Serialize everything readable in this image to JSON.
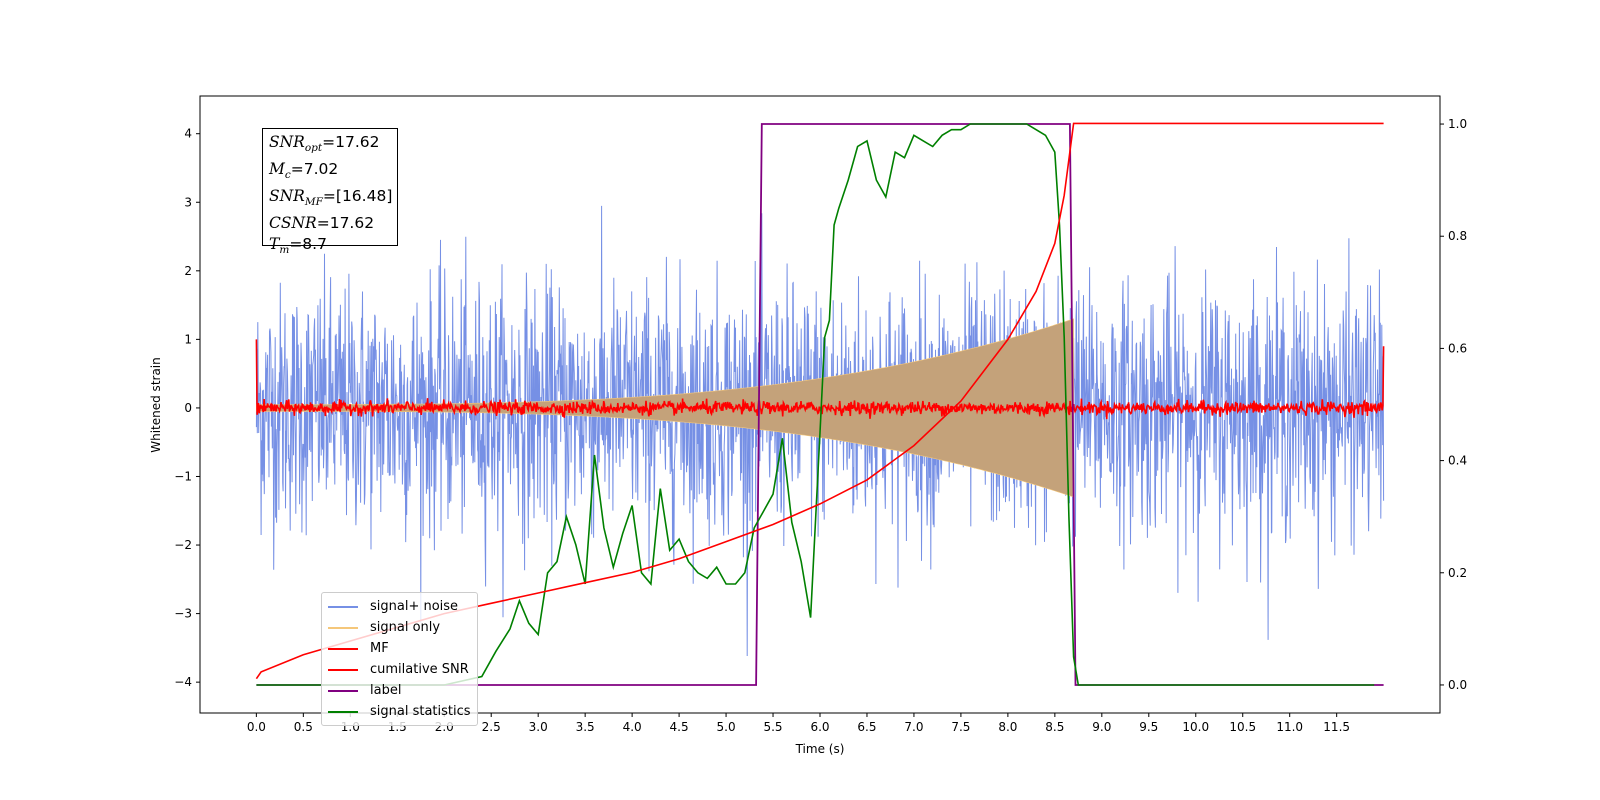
{
  "chart_data": {
    "type": "line",
    "xlabel": "Time (s)",
    "ylabel": "Whitened strain",
    "xlim": [
      -0.6,
      12.6
    ],
    "ylim": [
      -4.45,
      4.55
    ],
    "y2lim": [
      -0.05,
      1.05
    ],
    "x_ticks": [
      "0.0",
      "0.5",
      "1.0",
      "1.5",
      "2.0",
      "2.5",
      "3.0",
      "3.5",
      "4.0",
      "4.5",
      "5.0",
      "5.5",
      "6.0",
      "6.5",
      "7.0",
      "7.5",
      "8.0",
      "8.5",
      "9.0",
      "9.5",
      "10.0",
      "10.5",
      "11.0",
      "11.5"
    ],
    "y_ticks": [
      "−4",
      "−3",
      "−2",
      "−1",
      "0",
      "1",
      "2",
      "3",
      "4"
    ],
    "y2_ticks": [
      "0.0",
      "0.2",
      "0.4",
      "0.6",
      "0.8",
      "1.0"
    ],
    "annotations": {
      "snr_opt_value": "=17.62",
      "mc_value": "=7.02",
      "snr_mf_value": "=[16.48]",
      "csnr_value": "=17.62",
      "tm_value": "=8.7"
    },
    "legend": [
      "signal+ noise",
      "signal only",
      "MF",
      "cumilative SNR",
      "label",
      "signal statistics"
    ],
    "legend_placement": "lower left",
    "series": [
      {
        "name": "signal+ noise",
        "axis": "left",
        "color": "#7690e5",
        "duration": 12.0,
        "std": 0.9,
        "max_abs": 4.15
      },
      {
        "name": "signal only",
        "axis": "left",
        "color": "#f5c77a",
        "start": 0.0,
        "end": 8.7,
        "envelope_start": 0.05,
        "envelope_end": 1.3
      },
      {
        "name": "MF",
        "axis": "left",
        "color": "#ff0000",
        "duration": 12.0,
        "noise_amplitude": 0.08,
        "start_value": 1.0,
        "end_value": 0.9
      },
      {
        "name": "cumilative SNR",
        "axis": "left",
        "color": "#ff0000",
        "x": [
          0.0,
          0.05,
          0.5,
          1.0,
          1.5,
          2.0,
          2.5,
          3.0,
          3.5,
          4.0,
          4.5,
          5.0,
          5.5,
          6.0,
          6.5,
          7.0,
          7.5,
          8.0,
          8.3,
          8.5,
          8.6,
          8.7,
          8.7,
          12.0
        ],
        "y": [
          -3.95,
          -3.85,
          -3.6,
          -3.4,
          -3.2,
          -3.0,
          -2.85,
          -2.7,
          -2.55,
          -2.4,
          -2.2,
          -1.95,
          -1.7,
          -1.4,
          -1.05,
          -0.55,
          0.1,
          1.0,
          1.7,
          2.4,
          3.1,
          4.15,
          4.15,
          4.15
        ]
      },
      {
        "name": "label",
        "axis": "right",
        "color": "#800080",
        "x": [
          0.0,
          5.32,
          5.38,
          8.66,
          8.72,
          12.0
        ],
        "y": [
          0.0,
          0.0,
          1.0,
          1.0,
          0.0,
          0.0
        ]
      },
      {
        "name": "signal statistics",
        "axis": "right",
        "color": "#008000",
        "x": [
          0.0,
          0.5,
          1.0,
          1.5,
          2.0,
          2.4,
          2.55,
          2.7,
          2.8,
          2.9,
          3.0,
          3.1,
          3.2,
          3.3,
          3.4,
          3.5,
          3.6,
          3.7,
          3.8,
          3.9,
          4.0,
          4.1,
          4.2,
          4.3,
          4.4,
          4.5,
          4.6,
          4.7,
          4.8,
          4.9,
          5.0,
          5.1,
          5.2,
          5.3,
          5.4,
          5.5,
          5.6,
          5.7,
          5.8,
          5.9,
          6.0,
          6.05,
          6.1,
          6.15,
          6.2,
          6.3,
          6.4,
          6.5,
          6.6,
          6.7,
          6.8,
          6.9,
          7.0,
          7.1,
          7.2,
          7.3,
          7.4,
          7.5,
          7.6,
          7.8,
          8.0,
          8.2,
          8.4,
          8.5,
          8.55,
          8.6,
          8.65,
          8.7,
          8.75,
          9.0,
          10.0,
          11.0,
          11.9
        ],
        "y": [
          0.0,
          0.0,
          0.0,
          0.0,
          0.0,
          0.015,
          0.06,
          0.1,
          0.15,
          0.11,
          0.09,
          0.2,
          0.22,
          0.3,
          0.25,
          0.18,
          0.41,
          0.28,
          0.21,
          0.27,
          0.32,
          0.2,
          0.18,
          0.35,
          0.24,
          0.26,
          0.22,
          0.2,
          0.19,
          0.21,
          0.18,
          0.18,
          0.2,
          0.28,
          0.31,
          0.34,
          0.44,
          0.29,
          0.22,
          0.12,
          0.45,
          0.62,
          0.65,
          0.82,
          0.85,
          0.9,
          0.96,
          0.97,
          0.9,
          0.87,
          0.95,
          0.94,
          0.98,
          0.97,
          0.96,
          0.98,
          0.99,
          0.99,
          1.0,
          1.0,
          1.0,
          1.0,
          0.98,
          0.95,
          0.82,
          0.62,
          0.3,
          0.05,
          0.0,
          0.0,
          0.0,
          0.0,
          0.0
        ]
      }
    ]
  }
}
